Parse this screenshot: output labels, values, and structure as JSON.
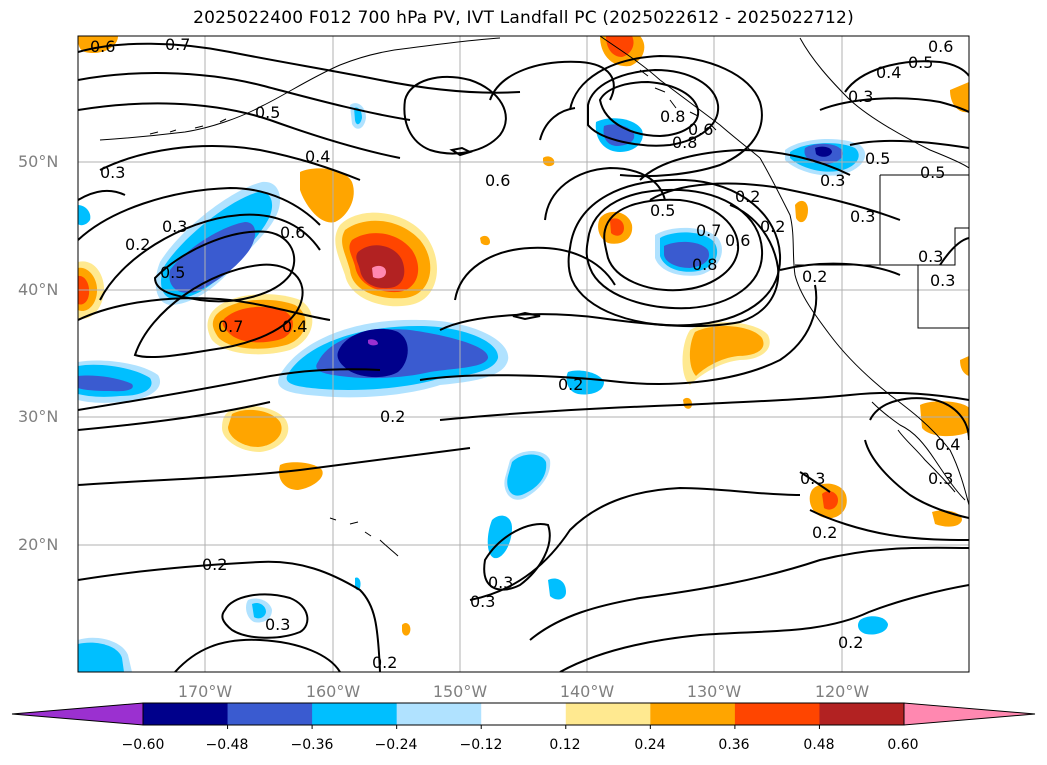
{
  "title": "2025022400 F012 700 hPa PV, IVT Landfall PC (2025022612 - 2025022712)",
  "latitude_labels": [
    "50°N",
    "40°N",
    "30°N",
    "20°N"
  ],
  "longitude_labels": [
    "170°W",
    "160°W",
    "150°W",
    "140°W",
    "130°W",
    "120°W"
  ],
  "colorbar": {
    "ticks": [
      "−0.60",
      "−0.48",
      "−0.36",
      "−0.24",
      "−0.12",
      "0.12",
      "0.24",
      "0.36",
      "0.48",
      "0.60"
    ],
    "colors": [
      "#9b30d0",
      "#00008b",
      "#3a5bd0",
      "#00bfff",
      "#b0e2ff",
      "#ffffff",
      "#ffe990",
      "#ffa500",
      "#ff4500",
      "#b22222",
      "#ff88b0"
    ],
    "extend": "both"
  },
  "contour_labels": [
    "0.6",
    "0.7",
    "0.5",
    "0.4",
    "0.3",
    "0.2",
    "0.6",
    "0.5",
    "0.3",
    "0.2",
    "0.6",
    "0.4",
    "0.7",
    "0.5",
    "0.7",
    "0.8",
    "0.2",
    "0.6",
    "0.2",
    "0.3",
    "0.3",
    "0.3",
    "0.2",
    "0.3",
    "0.2",
    "0.2",
    "0.3",
    "0.2",
    "0.6",
    "0.5",
    "0.4",
    "0.3",
    "0.5",
    "0.3",
    "0.3",
    "0.2",
    "0.8",
    "0.5",
    "0.4",
    "0.6",
    "0.3",
    "0.3",
    "0.8",
    "0.2"
  ]
}
